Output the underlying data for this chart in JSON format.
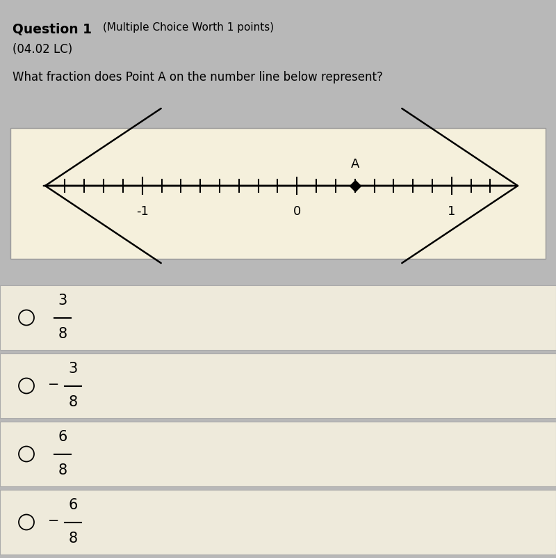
{
  "bg_color": "#b8b8b8",
  "numberline_bg": "#f5f0dc",
  "choice_bg": "#eeeadb",
  "title_bold": "Question 1",
  "title_normal": "(Multiple Choice Worth 1 points)",
  "subtitle": "(04.02 LC)",
  "question": "What fraction does Point A on the number line below represent?",
  "point_A_value": 0.375,
  "tick_positions": [
    -1.5,
    -1.375,
    -1.25,
    -1.125,
    -1.0,
    -0.875,
    -0.75,
    -0.625,
    -0.5,
    -0.375,
    -0.25,
    -0.125,
    0.0,
    0.125,
    0.25,
    0.375,
    0.5,
    0.625,
    0.75,
    0.875,
    1.0,
    1.125,
    1.25
  ],
  "labeled_ticks": [
    -1.0,
    0.0,
    1.0
  ],
  "tick_labels": [
    "-1",
    "0",
    "1"
  ],
  "nl_data_min": -1.65,
  "nl_data_max": 1.45,
  "choice_signs": [
    "",
    "-",
    "",
    "-"
  ],
  "choice_numerators": [
    "3",
    "3",
    "6",
    "6"
  ],
  "choice_denominators": [
    "8",
    "8",
    "8",
    "8"
  ]
}
